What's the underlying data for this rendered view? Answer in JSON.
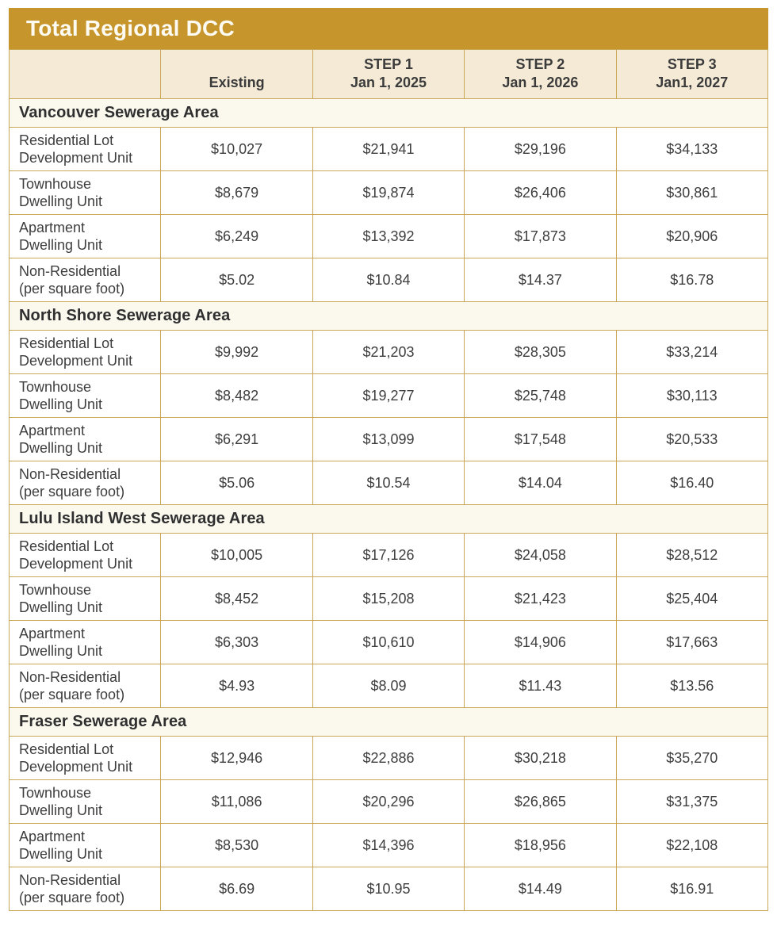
{
  "title": "Total Regional DCC",
  "colors": {
    "accent_gold": "#c6952c",
    "header_beige": "#f4ead6",
    "section_cream": "#fbf8ee",
    "border_gold": "#c9a85a",
    "title_text": "#fdfbf2",
    "body_text": "#3b3b3b"
  },
  "header": {
    "corner": "",
    "existing": "Existing",
    "steps": [
      {
        "line1": "STEP 1",
        "line2": "Jan 1, 2025"
      },
      {
        "line1": "STEP 2",
        "line2": "Jan 1, 2026"
      },
      {
        "line1": "STEP 3",
        "line2": "Jan1, 2027"
      }
    ]
  },
  "sections": [
    {
      "name": "Vancouver Sewerage Area",
      "rows": [
        {
          "label": "Residential Lot\nDevelopment Unit",
          "values": [
            "$10,027",
            "$21,941",
            "$29,196",
            "$34,133"
          ]
        },
        {
          "label": "Townhouse\nDwelling Unit",
          "values": [
            "$8,679",
            "$19,874",
            "$26,406",
            "$30,861"
          ]
        },
        {
          "label": "Apartment\nDwelling Unit",
          "values": [
            "$6,249",
            "$13,392",
            "$17,873",
            "$20,906"
          ]
        },
        {
          "label": "Non-Residential\n(per square foot)",
          "values": [
            "$5.02",
            "$10.84",
            "$14.37",
            "$16.78"
          ]
        }
      ]
    },
    {
      "name": "North Shore Sewerage Area",
      "rows": [
        {
          "label": "Residential Lot\nDevelopment Unit",
          "values": [
            "$9,992",
            "$21,203",
            "$28,305",
            "$33,214"
          ]
        },
        {
          "label": "Townhouse\nDwelling Unit",
          "values": [
            "$8,482",
            "$19,277",
            "$25,748",
            "$30,113"
          ]
        },
        {
          "label": "Apartment\nDwelling Unit",
          "values": [
            "$6,291",
            "$13,099",
            "$17,548",
            "$20,533"
          ]
        },
        {
          "label": "Non-Residential\n(per square foot)",
          "values": [
            "$5.06",
            "$10.54",
            "$14.04",
            "$16.40"
          ]
        }
      ]
    },
    {
      "name": "Lulu Island West Sewerage Area",
      "rows": [
        {
          "label": "Residential Lot\nDevelopment Unit",
          "values": [
            "$10,005",
            "$17,126",
            "$24,058",
            "$28,512"
          ]
        },
        {
          "label": "Townhouse\nDwelling Unit",
          "values": [
            "$8,452",
            "$15,208",
            "$21,423",
            "$25,404"
          ]
        },
        {
          "label": "Apartment\nDwelling Unit",
          "values": [
            "$6,303",
            "$10,610",
            "$14,906",
            "$17,663"
          ]
        },
        {
          "label": "Non-Residential\n(per square foot)",
          "values": [
            "$4.93",
            "$8.09",
            "$11.43",
            "$13.56"
          ]
        }
      ]
    },
    {
      "name": "Fraser Sewerage Area",
      "rows": [
        {
          "label": "Residential Lot\nDevelopment Unit",
          "values": [
            "$12,946",
            "$22,886",
            "$30,218",
            "$35,270"
          ]
        },
        {
          "label": "Townhouse\nDwelling Unit",
          "values": [
            "$11,086",
            "$20,296",
            "$26,865",
            "$31,375"
          ]
        },
        {
          "label": "Apartment\nDwelling Unit",
          "values": [
            "$8,530",
            "$14,396",
            "$18,956",
            "$22,108"
          ]
        },
        {
          "label": "Non-Residential\n(per square foot)",
          "values": [
            "$6.69",
            "$10.95",
            "$14.49",
            "$16.91"
          ]
        }
      ]
    }
  ]
}
